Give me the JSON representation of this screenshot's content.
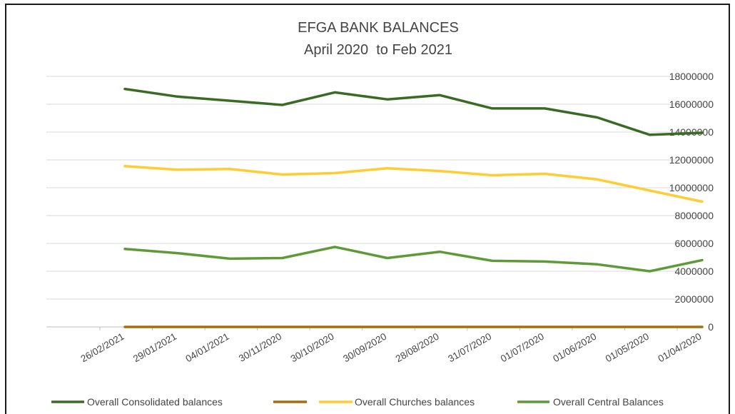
{
  "chart_data": {
    "type": "line",
    "title": "EFGA BANK BALANCES",
    "subtitle": "April 2020  to Feb 2021",
    "xlabel": "",
    "ylabel": "",
    "x": [
      "26/02/2021",
      "29/01/2021",
      "04/01/2021",
      "30/11/2020",
      "30/10/2020",
      "30/09/2020",
      "28/08/2020",
      "31/07/2020",
      "01/07/2020",
      "01/06/2020",
      "01/05/2020",
      "01/04/2020"
    ],
    "ylim": [
      0,
      18000000
    ],
    "yticks": [
      "0",
      "2000000",
      "4000000",
      "6000000",
      "8000000",
      "10000000",
      "12000000",
      "14000000",
      "16000000",
      "18000000"
    ],
    "y_axis_side": "right",
    "grid": true,
    "legend_position": "bottom",
    "series": [
      {
        "name": "Overall Consolidated balances",
        "color": "#3a6b24",
        "values": [
          17100000,
          16550000,
          16250000,
          15950000,
          16850000,
          16350000,
          16650000,
          15700000,
          15700000,
          15050000,
          13800000,
          13950000
        ]
      },
      {
        "name": "",
        "color": "#a36f0c",
        "values": [
          0,
          0,
          0,
          0,
          0,
          0,
          0,
          0,
          0,
          0,
          0,
          0
        ]
      },
      {
        "name": "Overall Churches balances",
        "color": "#ffcd33",
        "values": [
          11550000,
          11300000,
          11350000,
          10950000,
          11050000,
          11400000,
          11200000,
          10900000,
          11000000,
          10600000,
          9800000,
          9000000
        ]
      },
      {
        "name": "Overall Central Balances",
        "color": "#5e9a38",
        "values": [
          5600000,
          5300000,
          4900000,
          4950000,
          5750000,
          4950000,
          5400000,
          4750000,
          4700000,
          4500000,
          4000000,
          4800000
        ]
      }
    ]
  }
}
